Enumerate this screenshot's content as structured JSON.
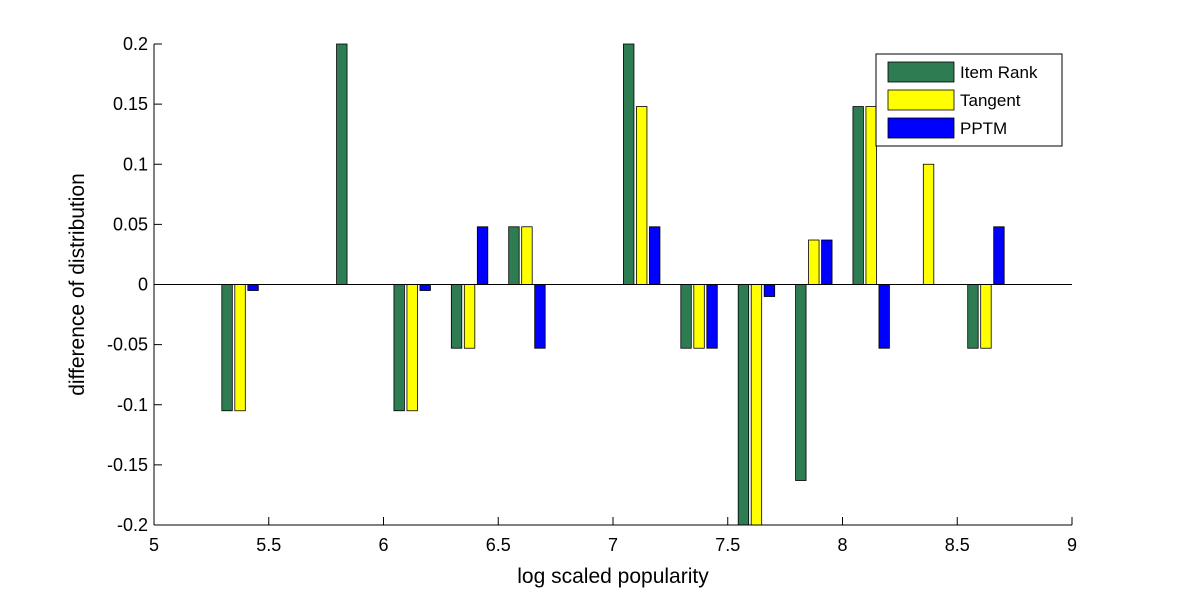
{
  "chart_data": {
    "type": "bar",
    "title": "",
    "xlabel": "log scaled popularity",
    "ylabel": "difference of distribution",
    "xlim": [
      5,
      9
    ],
    "ylim": [
      -0.2,
      0.2
    ],
    "grid": false,
    "legend_position": "top-right",
    "x_ticks": [
      5,
      5.5,
      6,
      6.5,
      7,
      7.5,
      8,
      8.5,
      9
    ],
    "x_tick_labels": [
      "5",
      "5.5",
      "6",
      "6.5",
      "7",
      "7.5",
      "8",
      "8.5",
      "9"
    ],
    "y_ticks": [
      0.2,
      0.15,
      0.1,
      0.05,
      0,
      -0.05,
      -0.1,
      -0.15,
      -0.2
    ],
    "y_tick_labels": [
      "0.2",
      "0.15",
      "0.1",
      "0.05",
      "0",
      "-0.05",
      "-0.1",
      "-0.15",
      "-0.2"
    ],
    "categories": [
      5.375,
      5.875,
      6.125,
      6.375,
      6.625,
      7.125,
      7.375,
      7.625,
      7.875,
      8.125,
      8.375,
      8.625
    ],
    "series": [
      {
        "name": "Item Rank",
        "color": "#2e7d52",
        "values": [
          -0.105,
          0.2,
          -0.105,
          -0.053,
          0.048,
          0.2,
          -0.053,
          -0.2,
          -0.163,
          0.148,
          0,
          -0.053
        ]
      },
      {
        "name": "Tangent",
        "color": "#ffff00",
        "values": [
          -0.105,
          0,
          -0.105,
          -0.053,
          0.048,
          0.148,
          -0.053,
          -0.2,
          0.037,
          0.148,
          0.1,
          -0.053
        ]
      },
      {
        "name": "PPTM",
        "color": "#0000ff",
        "values": [
          -0.005,
          0,
          -0.005,
          0.048,
          -0.053,
          0.048,
          -0.053,
          -0.01,
          0.037,
          -0.053,
          0,
          0.048
        ]
      }
    ]
  }
}
